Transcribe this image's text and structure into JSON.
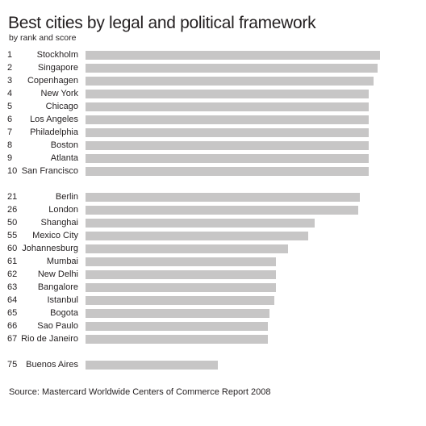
{
  "title": "Best cities by legal and political framework",
  "subtitle": "by rank and score",
  "source": "Source: Mastercard Worldwide Centers of Commerce Report 2008",
  "colors": {
    "bar": "#c7c6c6",
    "text": "#231f20",
    "background": "#ffffff"
  },
  "chart_data": {
    "type": "bar",
    "orientation": "horizontal",
    "title": "Best cities by legal and political framework",
    "subtitle": "by rank and score",
    "categories": [
      "Stockholm",
      "Singapore",
      "Copenhagen",
      "New York",
      "Chicago",
      "Los Angeles",
      "Philadelphia",
      "Boston",
      "Atlanta",
      "San Francisco",
      "Berlin",
      "London",
      "Shanghai",
      "Mexico City",
      "Johannesburg",
      "Mumbai",
      "New Delhi",
      "Bangalore",
      "Istanbul",
      "Bogota",
      "Sao Paulo",
      "Rio de Janeiro",
      "Buenos Aires"
    ],
    "ranks": [
      "1",
      "2",
      "3",
      "4",
      "5",
      "6",
      "7",
      "8",
      "9",
      "10",
      "21",
      "26",
      "50",
      "55",
      "60",
      "61",
      "62",
      "63",
      "64",
      "65",
      "66",
      "67",
      "75"
    ],
    "values": [
      100,
      99.3,
      97.7,
      96.3,
      96.2,
      96.2,
      96.1,
      96.1,
      96.1,
      96.1,
      93.1,
      92.6,
      77.7,
      75.5,
      68.7,
      64.6,
      64.6,
      64.6,
      64.1,
      62.5,
      62.0,
      62.0,
      44.9
    ],
    "xlim": [
      0,
      100
    ],
    "grid": false,
    "legend": "none"
  }
}
